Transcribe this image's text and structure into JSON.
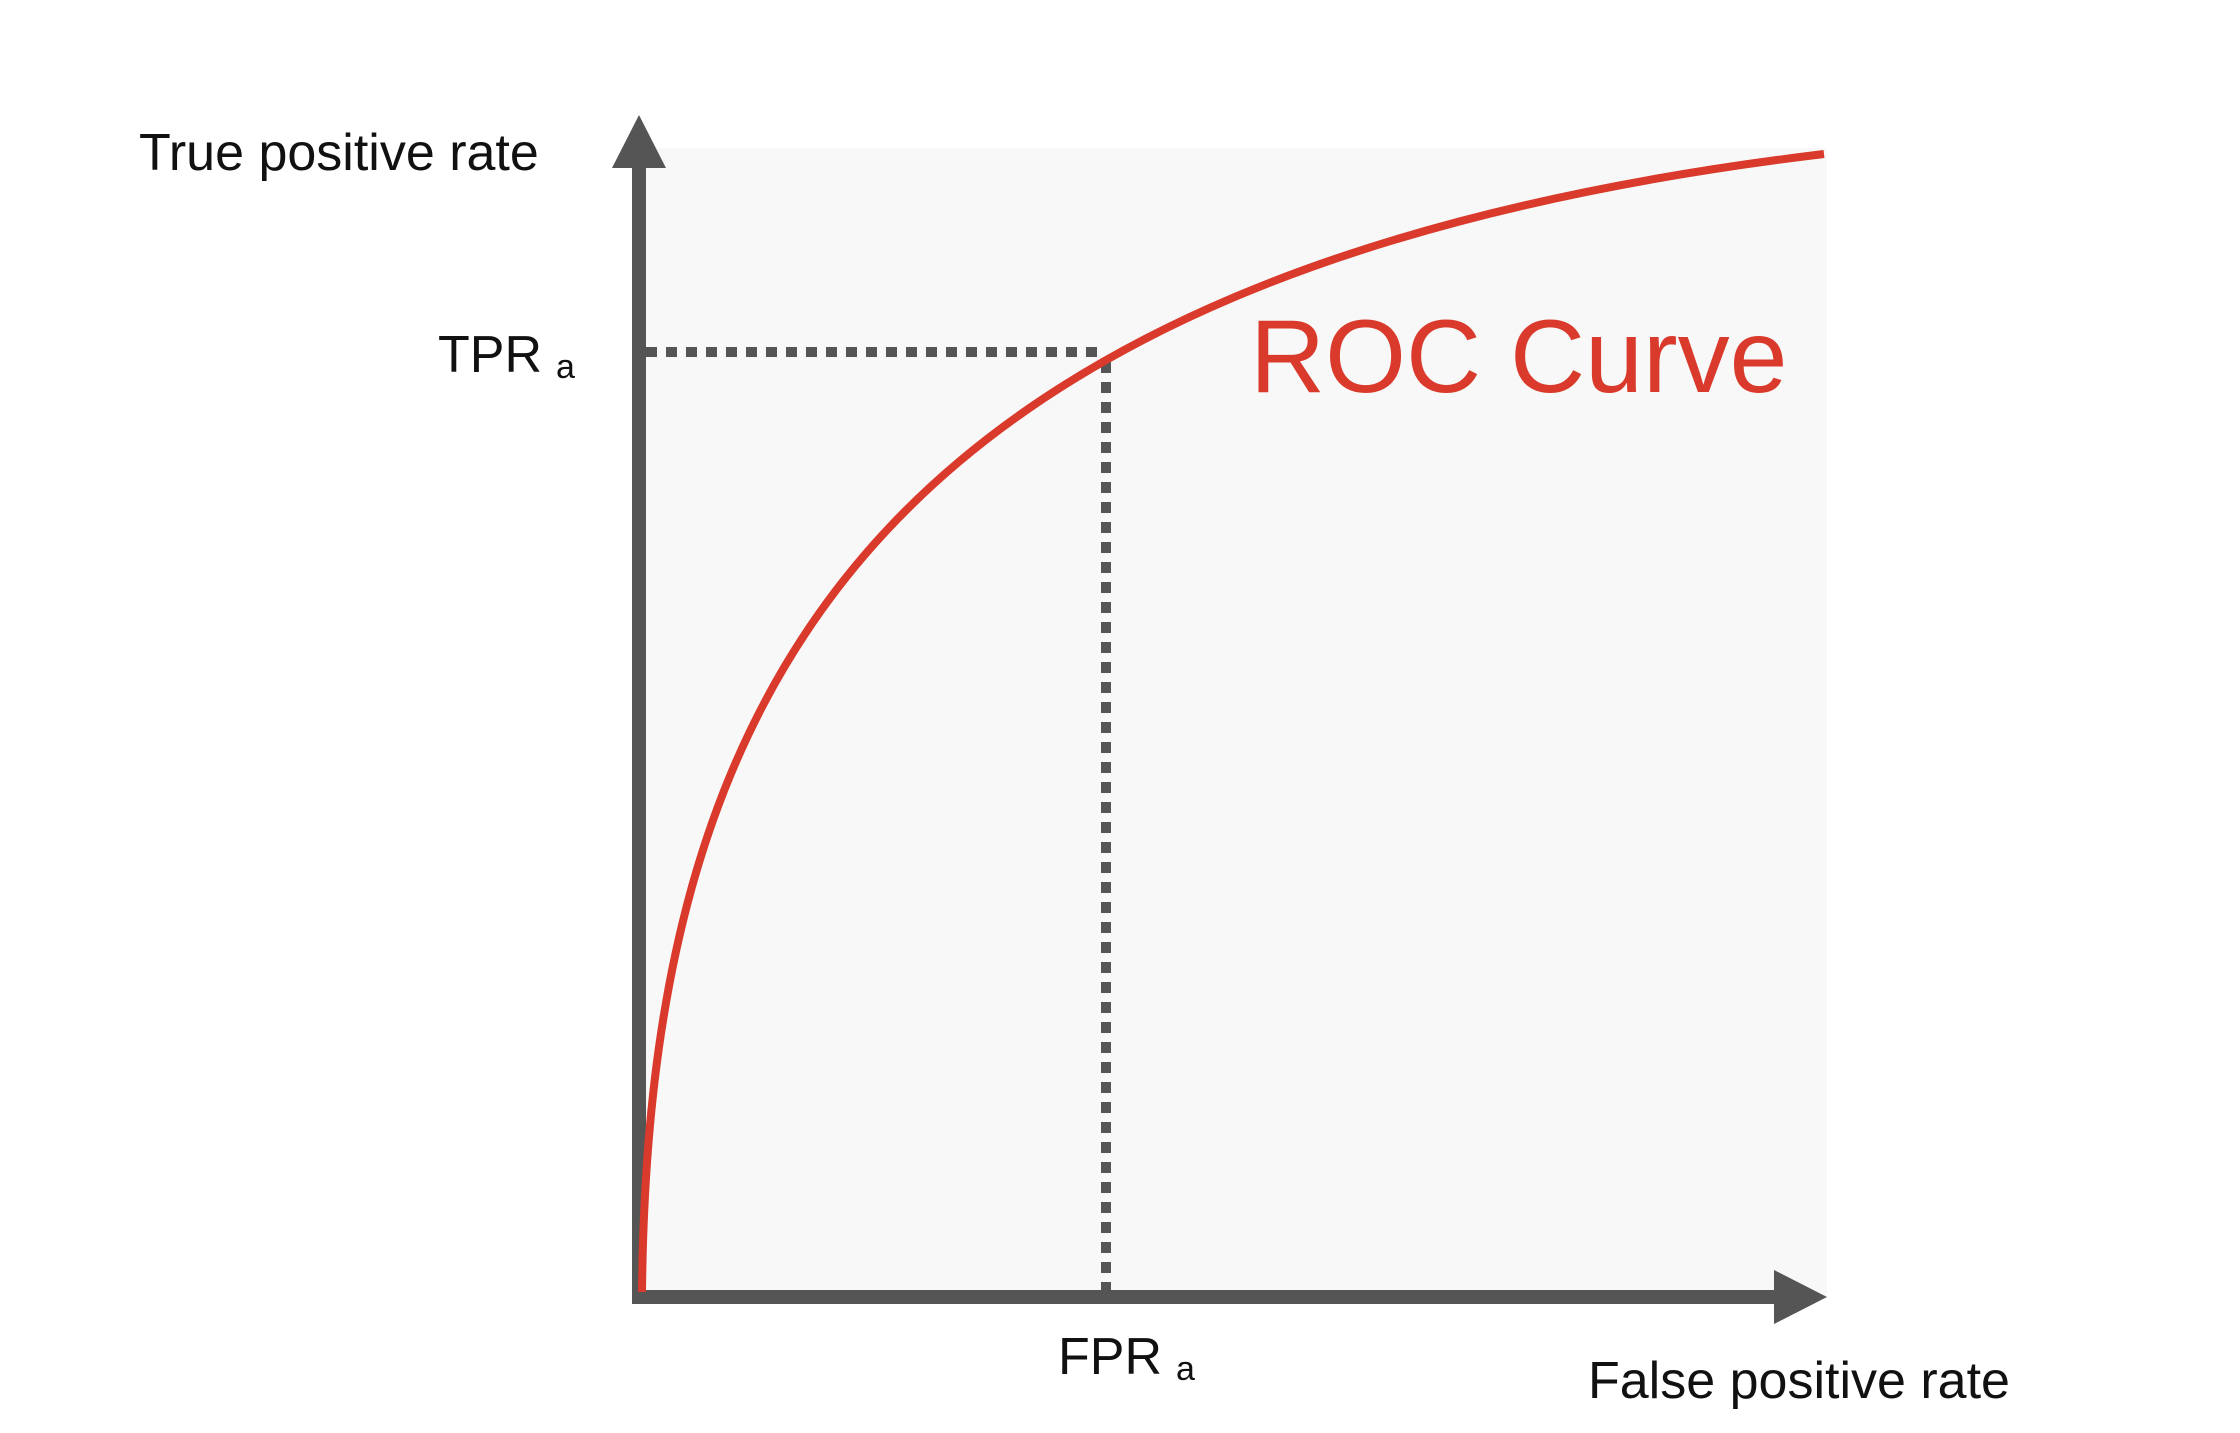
{
  "y_axis_label": "True positive rate",
  "x_axis_label": "False positive rate",
  "tpr_label": {
    "main": "TPR",
    "sub": "a"
  },
  "fpr_label": {
    "main": "FPR",
    "sub": "a"
  },
  "curve_label": "ROC Curve"
}
